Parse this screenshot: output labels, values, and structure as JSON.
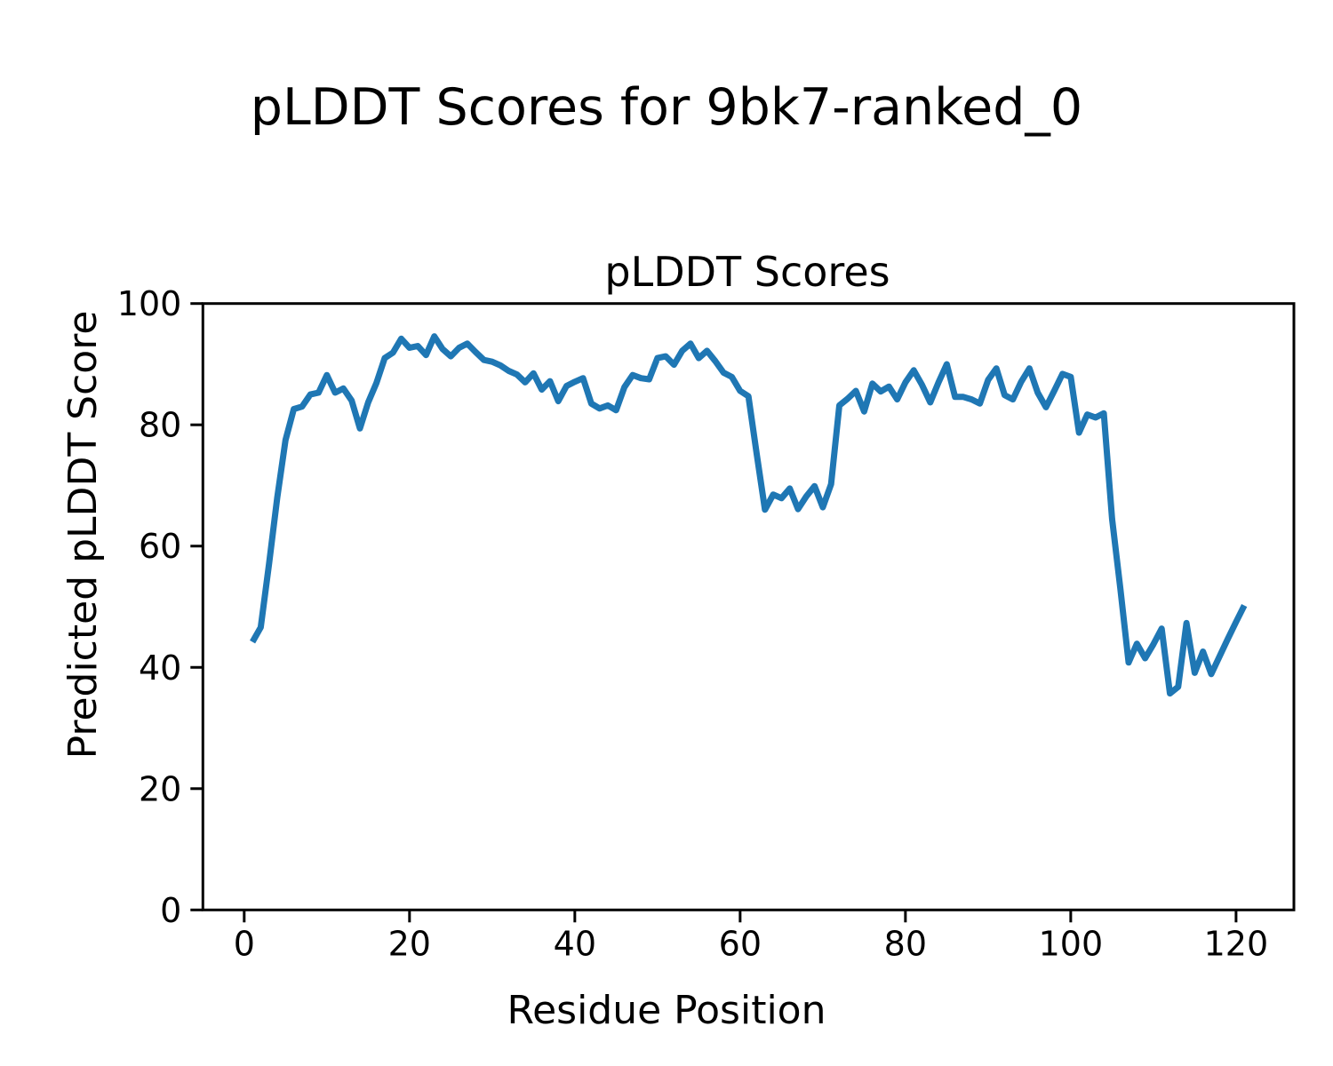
{
  "figure": {
    "suptitle": "pLDDT Scores for 9bk7-ranked_0",
    "background": "#ffffff",
    "text_color": "#000000"
  },
  "chart_data": {
    "type": "line",
    "title": "pLDDT Scores",
    "xlabel": "Residue Position",
    "ylabel": "Predicted pLDDT Score",
    "xlim": [
      -5,
      127
    ],
    "ylim": [
      0,
      100
    ],
    "xticks": [
      0,
      20,
      40,
      60,
      80,
      100,
      120
    ],
    "yticks": [
      0,
      20,
      40,
      60,
      80,
      100
    ],
    "grid": false,
    "legend": "none",
    "series": [
      {
        "name": "pLDDT",
        "color": "#1f77b4",
        "x": [
          1,
          2,
          3,
          4,
          5,
          6,
          7,
          8,
          9,
          10,
          11,
          12,
          13,
          14,
          15,
          16,
          17,
          18,
          19,
          20,
          21,
          22,
          23,
          24,
          25,
          26,
          27,
          28,
          29,
          30,
          31,
          32,
          33,
          34,
          35,
          36,
          37,
          38,
          39,
          40,
          41,
          42,
          43,
          44,
          45,
          46,
          47,
          48,
          49,
          50,
          51,
          52,
          53,
          54,
          55,
          56,
          57,
          58,
          59,
          60,
          61,
          62,
          63,
          64,
          65,
          66,
          67,
          68,
          69,
          70,
          71,
          72,
          73,
          74,
          75,
          76,
          77,
          78,
          79,
          80,
          81,
          82,
          83,
          84,
          85,
          86,
          87,
          88,
          89,
          90,
          91,
          92,
          93,
          94,
          95,
          96,
          97,
          98,
          99,
          100,
          101,
          102,
          103,
          104,
          105,
          106,
          107,
          108,
          109,
          110,
          111,
          112,
          113,
          114,
          115,
          116,
          117,
          118,
          119,
          120,
          121
        ],
        "values": [
          44.2,
          46.6,
          57.0,
          68.0,
          77.5,
          82.6,
          83.0,
          85.0,
          85.3,
          88.2,
          85.3,
          86.0,
          84.0,
          79.4,
          83.7,
          86.9,
          91.0,
          91.9,
          94.2,
          92.7,
          93.0,
          91.5,
          94.6,
          92.5,
          91.3,
          92.7,
          93.4,
          92.0,
          90.7,
          90.4,
          89.8,
          88.9,
          88.3,
          87.0,
          88.5,
          85.8,
          87.2,
          83.9,
          86.4,
          87.1,
          87.7,
          83.5,
          82.7,
          83.2,
          82.4,
          86.2,
          88.2,
          87.7,
          87.5,
          91.0,
          91.3,
          89.9,
          92.2,
          93.4,
          91.0,
          92.2,
          90.5,
          88.6,
          87.9,
          85.6,
          84.7,
          75.2,
          66.0,
          68.5,
          67.9,
          69.5,
          66.1,
          68.2,
          69.9,
          66.4,
          70.2,
          83.2,
          84.3,
          85.6,
          82.2,
          86.8,
          85.5,
          86.3,
          84.2,
          87.0,
          89.0,
          86.6,
          83.7,
          87.0,
          90.0,
          84.6,
          84.6,
          84.2,
          83.5,
          87.4,
          89.3,
          84.9,
          84.2,
          87.1,
          89.3,
          85.3,
          82.9,
          85.6,
          88.4,
          87.9,
          78.7,
          81.7,
          81.2,
          81.9,
          64.5,
          53.0,
          40.8,
          43.9,
          41.5,
          43.8,
          46.4,
          35.7,
          36.8,
          47.3,
          39.1,
          42.6,
          38.9,
          41.8,
          44.7,
          47.5,
          50.2
        ]
      }
    ]
  }
}
